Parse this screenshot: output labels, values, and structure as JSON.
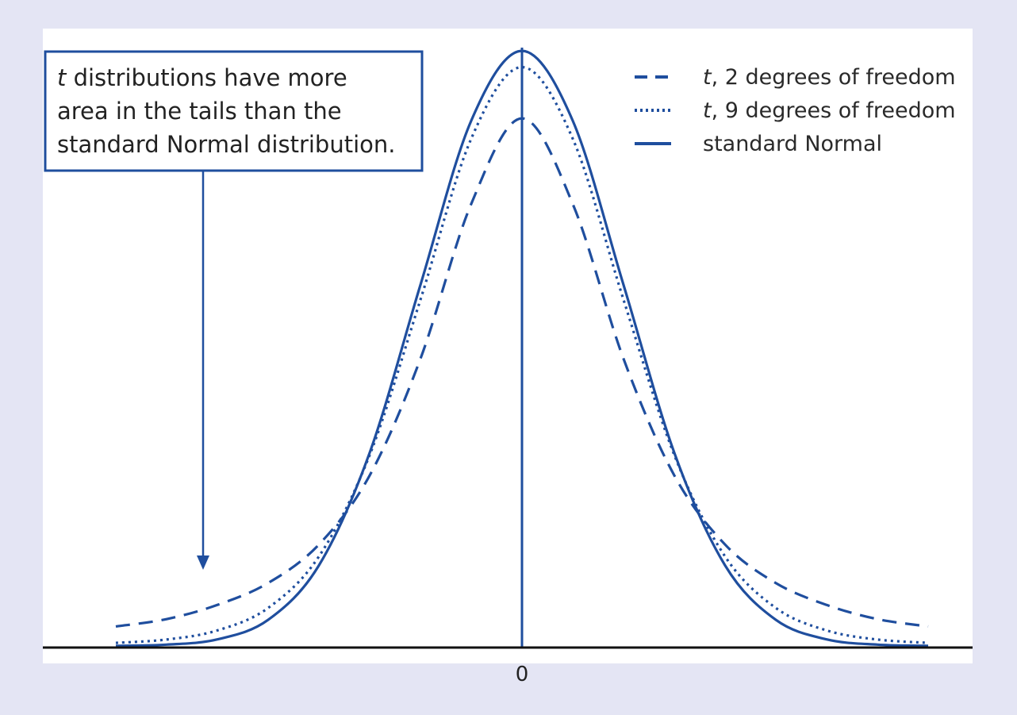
{
  "chart_data": {
    "type": "line",
    "title": "",
    "xlabel": "",
    "ylabel": "",
    "x_ticks": [
      "0"
    ],
    "xlim": [
      -4.2,
      4.2
    ],
    "ylim": [
      0,
      0.4
    ],
    "grid": false,
    "legend_position": "top-right",
    "x": [
      -4.0,
      -3.5,
      -3.0,
      -2.5,
      -2.0,
      -1.5,
      -1.0,
      -0.5,
      0.0,
      0.5,
      1.0,
      1.5,
      2.0,
      2.5,
      3.0,
      3.5,
      4.0
    ],
    "series": [
      {
        "name": "t, 2 degrees of freedom",
        "style": "dashed",
        "values": [
          0.0131,
          0.018,
          0.0275,
          0.0422,
          0.068,
          0.1143,
          0.1925,
          0.2963,
          0.3536,
          0.2963,
          0.1925,
          0.1143,
          0.068,
          0.0422,
          0.0275,
          0.018,
          0.0131
        ]
      },
      {
        "name": "t, 9 degrees of freedom",
        "style": "dotted",
        "values": [
          0.0021,
          0.0043,
          0.0104,
          0.0255,
          0.06,
          0.128,
          0.2321,
          0.34,
          0.388,
          0.34,
          0.2321,
          0.128,
          0.06,
          0.0255,
          0.0104,
          0.0043,
          0.0021
        ]
      },
      {
        "name": "standard Normal",
        "style": "solid",
        "values": [
          0.0001,
          0.0009,
          0.0044,
          0.0175,
          0.054,
          0.1295,
          0.242,
          0.3521,
          0.3989,
          0.3521,
          0.242,
          0.1295,
          0.054,
          0.0175,
          0.0044,
          0.0009,
          0.0001
        ]
      }
    ],
    "annotation": {
      "lines": [
        "distributions have more",
        "area in the tails than the",
        "standard Normal distribution."
      ],
      "italic_prefix": "t"
    },
    "colors": {
      "curve": "#1f4e9e",
      "axis": "#111111",
      "background": "#e4e5f4",
      "panel": "#ffffff"
    }
  },
  "legend": [
    {
      "prefix": "t",
      "rest": ", 2 degrees of freedom",
      "style": "dashed"
    },
    {
      "prefix": "t",
      "rest": ", 9 degrees of freedom",
      "style": "dotted"
    },
    {
      "prefix": "",
      "rest": "standard Normal",
      "style": "solid"
    }
  ]
}
